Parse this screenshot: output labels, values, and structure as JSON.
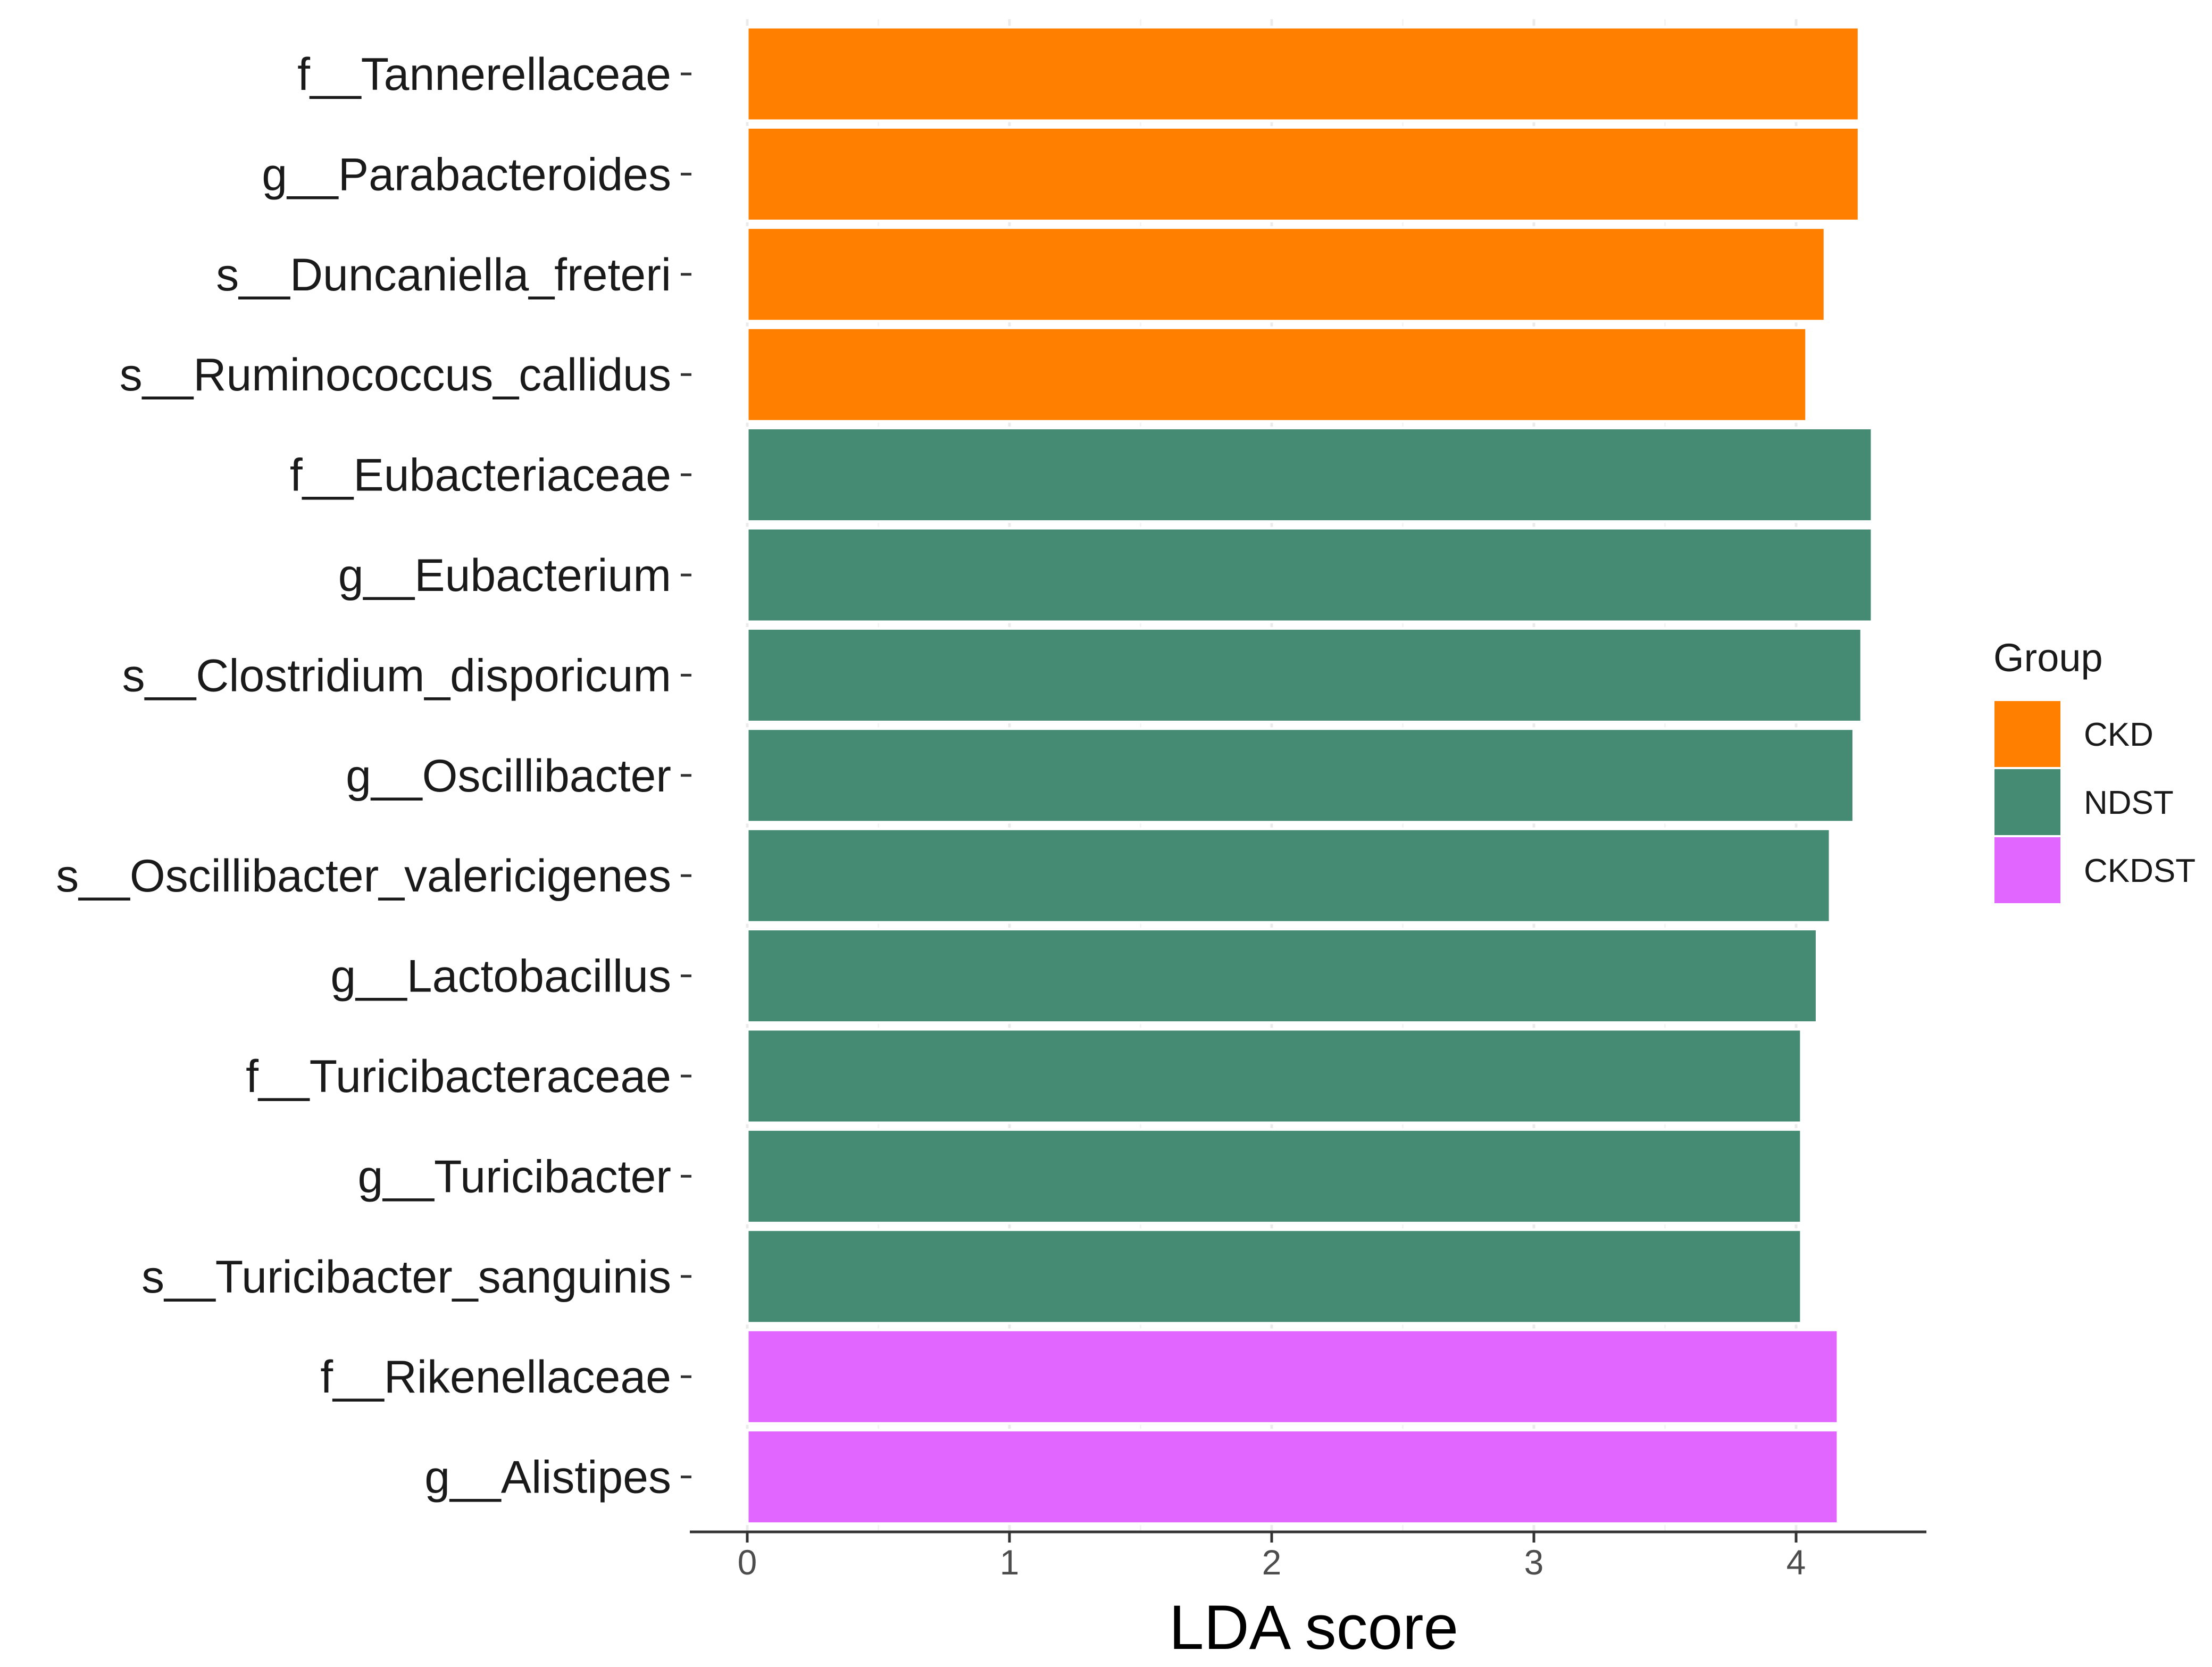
{
  "chart_data": {
    "type": "bar",
    "orientation": "horizontal",
    "title": "",
    "xlabel": "LDA score",
    "ylabel": "",
    "xlim": [
      -0.2,
      4.5
    ],
    "xticks": [
      0,
      1,
      2,
      3,
      4
    ],
    "grid": true,
    "legend": {
      "title": "Group",
      "position": "right",
      "entries": [
        {
          "name": "CKD",
          "color": "#FF7F00"
        },
        {
          "name": "NDST",
          "color": "#458B74"
        },
        {
          "name": "CKDST",
          "color": "#E066FF"
        }
      ]
    },
    "categories": [
      "f__Tannerellaceae",
      "g__Parabacteroides",
      "s__Duncaniella_freteri",
      "s__Ruminococcus_callidus",
      "f__Eubacteriaceae",
      "g__Eubacterium",
      "s__Clostridium_disporicum",
      "g__Oscillibacter",
      "s__Oscillibacter_valericigenes",
      "g__Lactobacillus",
      "f__Turicibacteraceae",
      "g__Turicibacter",
      "s__Turicibacter_sanguinis",
      "f__Rikenellaceae",
      "g__Alistipes"
    ],
    "values": [
      4.24,
      4.24,
      4.11,
      4.04,
      4.29,
      4.29,
      4.25,
      4.22,
      4.13,
      4.08,
      4.02,
      4.02,
      4.02,
      4.16,
      4.16
    ],
    "groups": [
      "CKD",
      "CKD",
      "CKD",
      "CKD",
      "NDST",
      "NDST",
      "NDST",
      "NDST",
      "NDST",
      "NDST",
      "NDST",
      "NDST",
      "NDST",
      "CKDST",
      "CKDST"
    ]
  }
}
